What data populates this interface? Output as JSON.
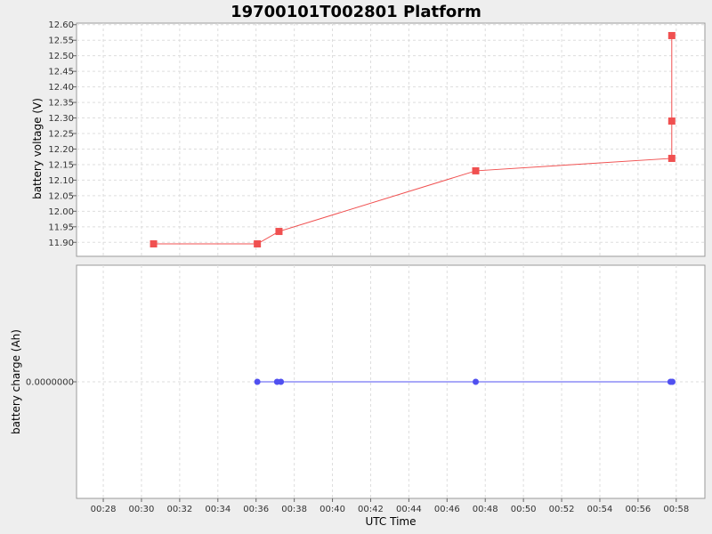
{
  "chart_data": {
    "type": "line",
    "title": "19700101T002801 Platform",
    "xlabel": "UTC Time",
    "x_ticks": [
      "00:28",
      "00:30",
      "00:32",
      "00:34",
      "00:36",
      "00:38",
      "00:40",
      "00:42",
      "00:44",
      "00:46",
      "00:48",
      "00:50",
      "00:52",
      "00:54",
      "00:56",
      "00:58"
    ],
    "x_range_minutes": [
      26.6,
      59.5
    ],
    "grid": true,
    "panels": [
      {
        "ylabel": "battery voltage (V)",
        "ylim": [
          11.855,
          12.605
        ],
        "y_ticks": [
          "11.90",
          "11.95",
          "12.00",
          "12.05",
          "12.10",
          "12.15",
          "12.20",
          "12.25",
          "12.30",
          "12.35",
          "12.40",
          "12.45",
          "12.50",
          "12.55",
          "12.60"
        ],
        "series": [
          {
            "color": "#f05050",
            "marker": "square",
            "x": [
              "00:30:38",
              "00:36:04",
              "00:37:12",
              "00:47:30",
              "00:57:46",
              "00:57:46",
              "00:57:46"
            ],
            "values": [
              11.895,
              11.895,
              11.935,
              12.13,
              12.17,
              12.29,
              12.565
            ]
          }
        ]
      },
      {
        "ylabel": "battery charge (Ah)",
        "y_ticks": [
          "0.0000000"
        ],
        "series": [
          {
            "color": "#5050f0",
            "marker": "circle",
            "x": [
              "00:36:04",
              "00:37:06",
              "00:37:18",
              "00:47:30",
              "00:57:42",
              "00:57:48"
            ],
            "values": [
              0,
              0,
              0,
              0,
              0,
              0
            ]
          }
        ]
      }
    ]
  }
}
